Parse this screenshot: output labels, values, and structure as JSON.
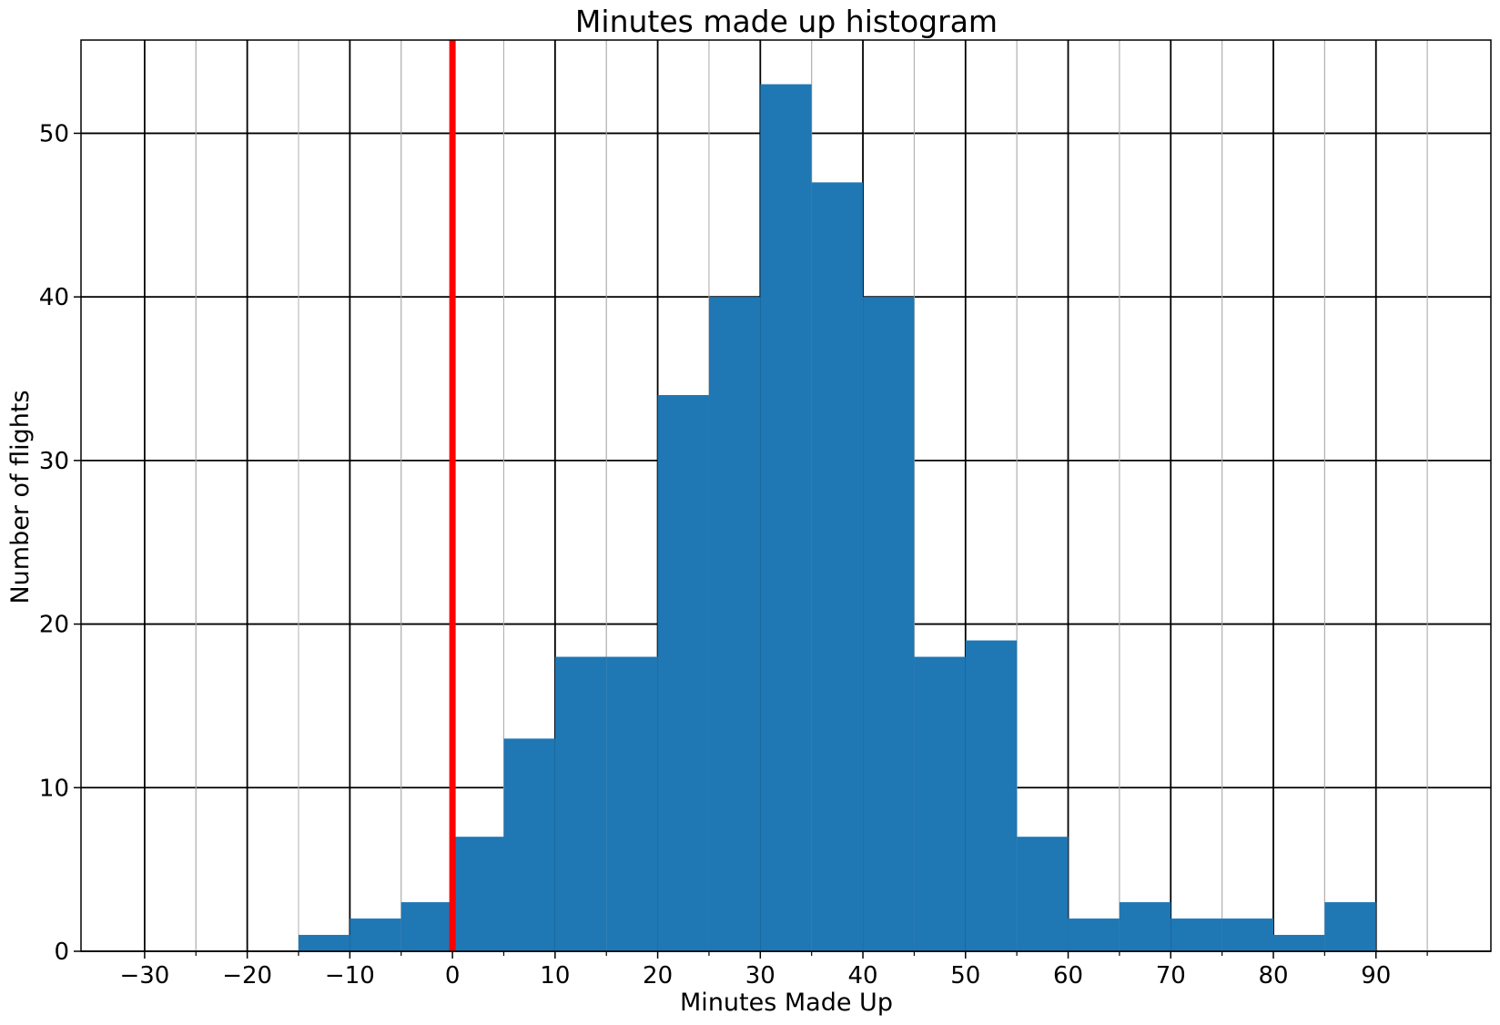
{
  "chart_data": {
    "type": "bar",
    "title": "Minutes made up histogram",
    "xlabel": "Minutes Made Up",
    "ylabel": "Number of flights",
    "xlim": [
      -36.2,
      101.2
    ],
    "ylim": [
      0,
      55.7
    ],
    "bin_width": 5,
    "bins": [
      {
        "start": -15,
        "count": 1
      },
      {
        "start": -10,
        "count": 2
      },
      {
        "start": -5,
        "count": 3
      },
      {
        "start": 0,
        "count": 7
      },
      {
        "start": 5,
        "count": 13
      },
      {
        "start": 10,
        "count": 18
      },
      {
        "start": 15,
        "count": 18
      },
      {
        "start": 20,
        "count": 34
      },
      {
        "start": 25,
        "count": 40
      },
      {
        "start": 30,
        "count": 53
      },
      {
        "start": 35,
        "count": 47
      },
      {
        "start": 40,
        "count": 40
      },
      {
        "start": 45,
        "count": 18
      },
      {
        "start": 50,
        "count": 19
      },
      {
        "start": 55,
        "count": 7
      },
      {
        "start": 60,
        "count": 2
      },
      {
        "start": 65,
        "count": 3
      },
      {
        "start": 70,
        "count": 2
      },
      {
        "start": 75,
        "count": 2
      },
      {
        "start": 80,
        "count": 1
      },
      {
        "start": 85,
        "count": 3
      }
    ],
    "x_major_ticks": [
      -30,
      -20,
      -10,
      0,
      10,
      20,
      30,
      40,
      50,
      60,
      70,
      80,
      90
    ],
    "x_tick_labels": [
      "−30",
      "−20",
      "−10",
      "0",
      "10",
      "20",
      "30",
      "40",
      "50",
      "60",
      "70",
      "80",
      "90"
    ],
    "x_minor_ticks": [
      -25,
      -15,
      -5,
      5,
      15,
      25,
      35,
      45,
      55,
      65,
      75,
      85,
      95
    ],
    "y_major_ticks": [
      0,
      10,
      20,
      30,
      40,
      50
    ],
    "y_tick_labels": [
      "0",
      "10",
      "20",
      "30",
      "40",
      "50"
    ],
    "reference_line": {
      "x": 0
    },
    "grid": true,
    "colors": {
      "bar": "#1f77b4",
      "reference_line": "#ff0000",
      "major_grid": "#000000",
      "minor_grid": "#b0b0b0"
    }
  }
}
